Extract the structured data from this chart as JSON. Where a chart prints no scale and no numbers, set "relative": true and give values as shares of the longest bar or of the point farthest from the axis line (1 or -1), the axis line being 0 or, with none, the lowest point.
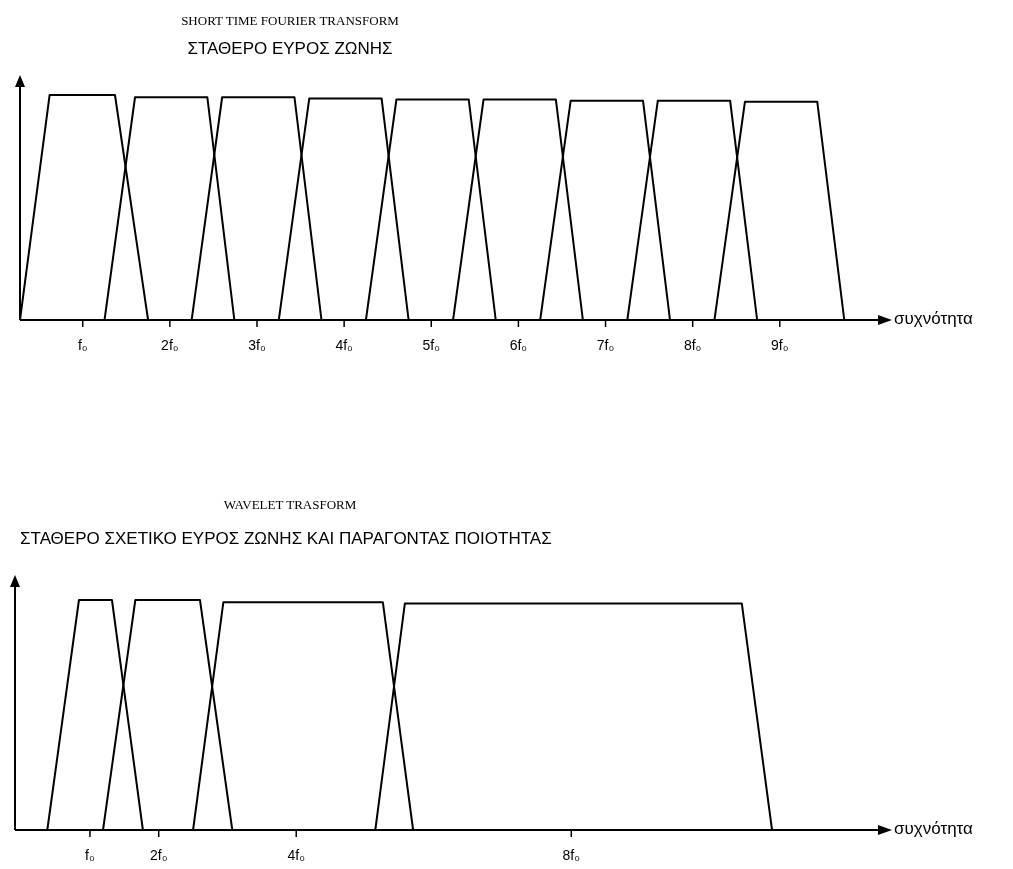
{
  "chart_data": [
    {
      "type": "line",
      "title": "SHORT TIME  FOURIER  TRANSFORM",
      "subtitle": "ΣΤΑΘΕΡΟ ΕΥΡΟΣ ΖΩΝΗΣ",
      "xlabel": "συχνότητα",
      "relative": true,
      "xlim": [
        0.28,
        10.15
      ],
      "xticks": [
        {
          "value": 1,
          "label": "f₀"
        },
        {
          "value": 2,
          "label": "2f₀"
        },
        {
          "value": 3,
          "label": "3f₀"
        },
        {
          "value": 4,
          "label": "4f₀"
        },
        {
          "value": 5,
          "label": "5f₀"
        },
        {
          "value": 6,
          "label": "6f₀"
        },
        {
          "value": 7,
          "label": "7f₀"
        },
        {
          "value": 8,
          "label": "8f₀"
        },
        {
          "value": 9,
          "label": "9f₀"
        }
      ],
      "series": [
        {
          "color": "#000000",
          "x": [
            0.28,
            0.62,
            1.37,
            1.75
          ],
          "values": [
            0,
            1,
            1,
            0
          ]
        },
        {
          "color": "#000000",
          "x": [
            1.25,
            1.6,
            2.43,
            2.74
          ],
          "values": [
            0,
            0.99,
            0.99,
            0
          ]
        },
        {
          "color": "#000000",
          "x": [
            2.25,
            2.6,
            3.43,
            3.74
          ],
          "values": [
            0,
            0.99,
            0.99,
            0
          ]
        },
        {
          "color": "#000000",
          "x": [
            3.25,
            3.6,
            4.43,
            4.74
          ],
          "values": [
            0,
            0.985,
            0.985,
            0
          ]
        },
        {
          "color": "#000000",
          "x": [
            4.25,
            4.6,
            5.43,
            5.74
          ],
          "values": [
            0,
            0.98,
            0.98,
            0
          ]
        },
        {
          "color": "#000000",
          "x": [
            5.25,
            5.6,
            6.43,
            6.74
          ],
          "values": [
            0,
            0.98,
            0.98,
            0
          ]
        },
        {
          "color": "#000000",
          "x": [
            6.25,
            6.6,
            7.43,
            7.74
          ],
          "values": [
            0,
            0.975,
            0.975,
            0
          ]
        },
        {
          "color": "#000000",
          "x": [
            7.25,
            7.6,
            8.43,
            8.74
          ],
          "values": [
            0,
            0.975,
            0.975,
            0
          ]
        },
        {
          "color": "#000000",
          "x": [
            8.25,
            8.6,
            9.43,
            9.74
          ],
          "values": [
            0,
            0.97,
            0.97,
            0
          ]
        }
      ]
    },
    {
      "type": "line",
      "title": "WAVELET TRASFORM",
      "subtitle": "ΣΤΑΘΕΡΟ ΣΧΕΤΙΚΟ ΕΥΡΟΣ ΖΩΝΗΣ ΚΑΙ ΠΑΡΑΓΟΝΤΑΣ ΠΟΙΟΤΗΤΑΣ",
      "xlabel": "συχνότητα",
      "relative": true,
      "xlim": [
        -0.09,
        12.49
      ],
      "xticks": [
        {
          "value": 1,
          "label": "f₀"
        },
        {
          "value": 2,
          "label": "2f₀"
        },
        {
          "value": 4,
          "label": "4f₀"
        },
        {
          "value": 8,
          "label": "8f₀"
        }
      ],
      "series": [
        {
          "color": "#000000",
          "x": [
            0.38,
            0.84,
            1.32,
            1.77
          ],
          "values": [
            0,
            1,
            1,
            0
          ]
        },
        {
          "color": "#000000",
          "x": [
            1.19,
            1.66,
            2.6,
            3.07
          ],
          "values": [
            0,
            1,
            1,
            0
          ]
        },
        {
          "color": "#000000",
          "x": [
            2.5,
            2.94,
            5.26,
            5.7
          ],
          "values": [
            0,
            0.99,
            0.99,
            0
          ]
        },
        {
          "color": "#000000",
          "x": [
            5.15,
            5.58,
            10.48,
            10.92
          ],
          "values": [
            0,
            0.985,
            0.985,
            0
          ]
        }
      ]
    }
  ]
}
